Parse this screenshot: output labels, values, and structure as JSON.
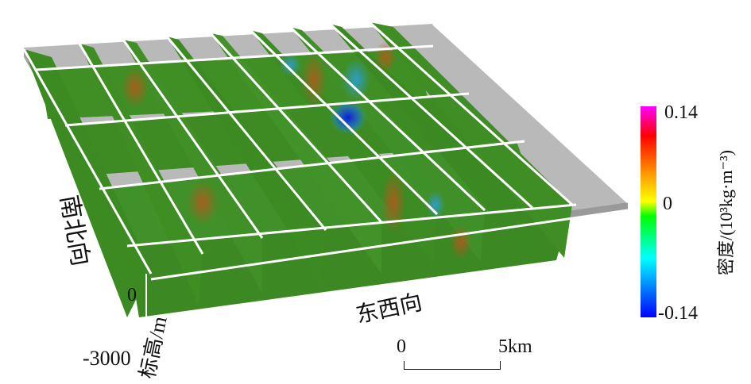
{
  "axes": {
    "north_south": "南北向",
    "east_west": "东西向",
    "elevation": "标高/m",
    "elev_ticks": {
      "top": "0",
      "bottom": "-3000"
    }
  },
  "scalebar": {
    "start": "0",
    "end": "5km"
  },
  "colorbar": {
    "title": "密度/(10³kg·m⁻³)",
    "max": "0.14",
    "mid": "0",
    "min": "-0.14",
    "colors": [
      "#ff00ff",
      "#ff0000",
      "#ff8800",
      "#ffff00",
      "#00ff00",
      "#00ffff",
      "#0000ff"
    ]
  },
  "colors": {
    "section_green": "#3f8f24",
    "frame_gray": "#a9a9a9",
    "frame_dark": "#8d8d8d",
    "grid_line": "#ffffff",
    "anomaly_high": "#a8641e",
    "anomaly_low": "#1c2fd6"
  }
}
